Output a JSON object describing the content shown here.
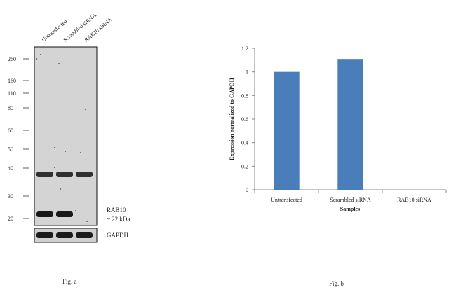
{
  "blot": {
    "lanes": [
      "Untransfected",
      "Scrambled siRNA",
      "RAB10 siRNA"
    ],
    "markers": [
      "260",
      "160",
      "110",
      "80",
      "60",
      "50",
      "40",
      "30",
      "20"
    ],
    "target_label": "RAB10",
    "target_size": "~ 22 kDa",
    "loading_control": "GAPDH",
    "band_present": [
      true,
      true,
      false
    ],
    "caption": "Fig. a"
  },
  "chart_data": {
    "type": "bar",
    "categories": [
      "Untransfected",
      "Scrambled siRNA",
      "RAB10 siRNA"
    ],
    "values": [
      1.0,
      1.11,
      0
    ],
    "xlabel": "Samples",
    "ylabel": "Expression  normalized to GAPDH",
    "ylim": [
      0,
      1.2
    ],
    "yticks": [
      "0",
      "0.2",
      "0.4",
      "0.6",
      "0.8",
      "1",
      "1.2"
    ],
    "bar_color": "#4a7ebb",
    "grid": false,
    "legend": "none"
  },
  "chart_caption": "Fig. b"
}
